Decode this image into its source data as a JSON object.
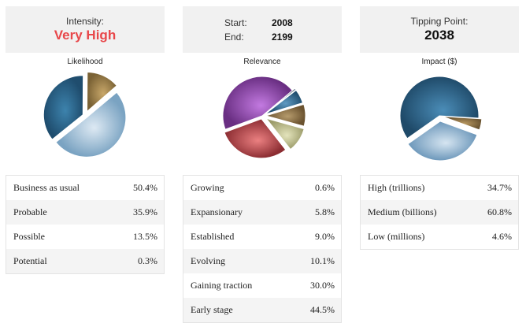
{
  "intensity": {
    "label": "Intensity:",
    "value": "Very High"
  },
  "years": {
    "start_label": "Start:",
    "start_value": "2008",
    "end_label": "End:",
    "end_value": "2199"
  },
  "tipping": {
    "label": "Tipping Point:",
    "value": "2038"
  },
  "chart_data": [
    {
      "type": "pie",
      "title": "Likelihood",
      "categories": [
        "Business as usual",
        "Probable",
        "Possible",
        "Potential"
      ],
      "values": [
        50.4,
        35.9,
        13.5,
        0.3
      ],
      "colors": [
        "#7aa3c2",
        "#1f4d6e",
        "#7a6235",
        "#6b5a33"
      ],
      "highlights": [
        "#dde9f3",
        "#3d83ad",
        "#c9a86a",
        "#a08a55"
      ],
      "explode": [
        3,
        3,
        6,
        0
      ]
    },
    {
      "type": "pie",
      "title": "Relevance",
      "categories": [
        "Growing",
        "Expansionary",
        "Established",
        "Evolving",
        "Gaining traction",
        "Early stage"
      ],
      "values": [
        0.6,
        5.8,
        9.0,
        10.1,
        30.0,
        44.5
      ],
      "colors": [
        "#233c50",
        "#1f4d6e",
        "#6b5330",
        "#9c9c6a",
        "#8c2d32",
        "#6a2f83"
      ],
      "highlights": [
        "#6a8ca6",
        "#5f9ac2",
        "#b69b6c",
        "#e4e4bc",
        "#eb8081",
        "#c37ae1"
      ],
      "explode": [
        4,
        4,
        5,
        6,
        4,
        0
      ]
    },
    {
      "type": "pie",
      "title": "Impact ($)",
      "categories": [
        "High (trillions)",
        "Medium (billions)",
        "Low (millions)"
      ],
      "values": [
        34.7,
        60.8,
        4.6
      ],
      "colors": [
        "#6c97ba",
        "#1f4a69",
        "#6b5431"
      ],
      "highlights": [
        "#d6e5f1",
        "#4b8db8",
        "#ba9a62"
      ],
      "explode": [
        7,
        0,
        4
      ]
    }
  ],
  "tables": {
    "likelihood": [
      {
        "label": "Business as usual",
        "value": "50.4%"
      },
      {
        "label": "Probable",
        "value": "35.9%"
      },
      {
        "label": "Possible",
        "value": "13.5%"
      },
      {
        "label": "Potential",
        "value": "0.3%"
      }
    ],
    "relevance": [
      {
        "label": "Growing",
        "value": "0.6%"
      },
      {
        "label": "Expansionary",
        "value": "5.8%"
      },
      {
        "label": "Established",
        "value": "9.0%"
      },
      {
        "label": "Evolving",
        "value": "10.1%"
      },
      {
        "label": "Gaining traction",
        "value": "30.0%"
      },
      {
        "label": "Early stage",
        "value": "44.5%"
      }
    ],
    "impact": [
      {
        "label": "High (trillions)",
        "value": "34.7%"
      },
      {
        "label": "Medium (billions)",
        "value": "60.8%"
      },
      {
        "label": "Low (millions)",
        "value": "4.6%"
      }
    ]
  }
}
